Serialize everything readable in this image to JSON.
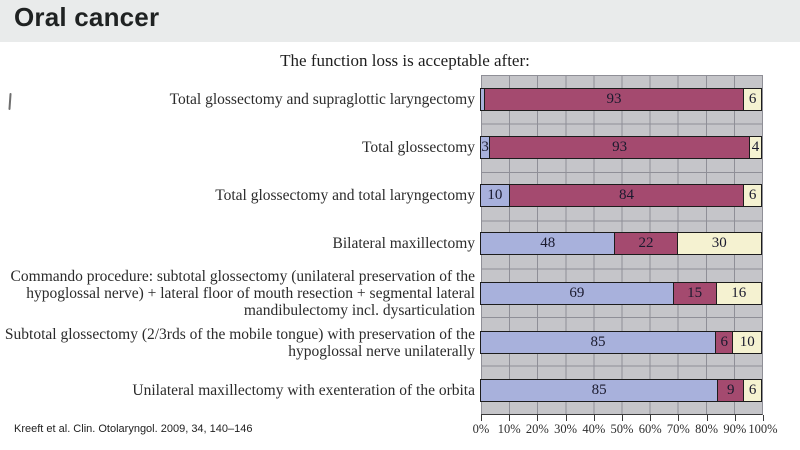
{
  "slide": {
    "title": "Oral cancer",
    "citation": "Kreeft et al. Clin. Otolaryngol. 2009, 34, 140–146"
  },
  "chart_data": {
    "type": "bar",
    "orientation": "horizontal",
    "stacked": true,
    "title": "The function loss is acceptable after:",
    "legend": "none",
    "grid": true,
    "colors": [
      "#a8b1dc",
      "#a44a6f",
      "#f5f2d1"
    ],
    "x_axis": {
      "min": 0,
      "max": 100,
      "tick_step": 10,
      "ticks": [
        "0%",
        "10%",
        "20%",
        "30%",
        "40%",
        "50%",
        "60%",
        "70%",
        "80%",
        "90%",
        "100%"
      ]
    },
    "rows": [
      {
        "label": "Total glossectomy and supraglottic laryngectomy",
        "values": [
          1,
          93,
          6
        ],
        "value_labels": [
          "",
          "93",
          "6"
        ]
      },
      {
        "label": "Total glossectomy",
        "values": [
          3,
          93,
          4
        ],
        "value_labels": [
          "3",
          "93",
          "4"
        ]
      },
      {
        "label": "Total glossectomy and total laryngectomy",
        "values": [
          10,
          84,
          6
        ],
        "value_labels": [
          "10",
          "84",
          "6"
        ]
      },
      {
        "label": "Bilateral maxillectomy",
        "values": [
          48,
          22,
          30
        ],
        "value_labels": [
          "48",
          "22",
          "30"
        ]
      },
      {
        "label": "Commando procedure: subtotal glossectomy (unilateral preservation of the hypoglossal nerve) + lateral floor of mouth resection + segmental lateral mandibulectomy incl. dysarticulation",
        "values": [
          69,
          15,
          16
        ],
        "value_labels": [
          "69",
          "15",
          "16"
        ]
      },
      {
        "label": "Subtotal glossectomy (2/3rds of the mobile tongue) with preservation of the hypoglossal nerve unilaterally",
        "values": [
          85,
          6,
          10
        ],
        "value_labels": [
          "85",
          "6",
          "10"
        ]
      },
      {
        "label": "Unilateral maxillectomy with exenteration of the orbita",
        "values": [
          85,
          9,
          6
        ],
        "value_labels": [
          "85",
          "9",
          "6"
        ]
      }
    ]
  }
}
